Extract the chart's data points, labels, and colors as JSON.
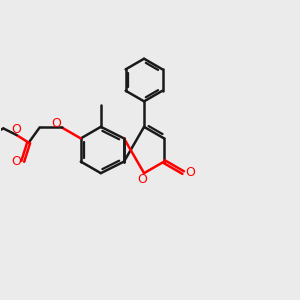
{
  "bg_color": "#ebebeb",
  "bond_color": "#1a1a1a",
  "oxygen_color": "#ff0000",
  "bond_width": 1.8,
  "figsize": [
    3.0,
    3.0
  ],
  "dpi": 100,
  "xlim": [
    0,
    10
  ],
  "ylim": [
    0,
    10
  ]
}
